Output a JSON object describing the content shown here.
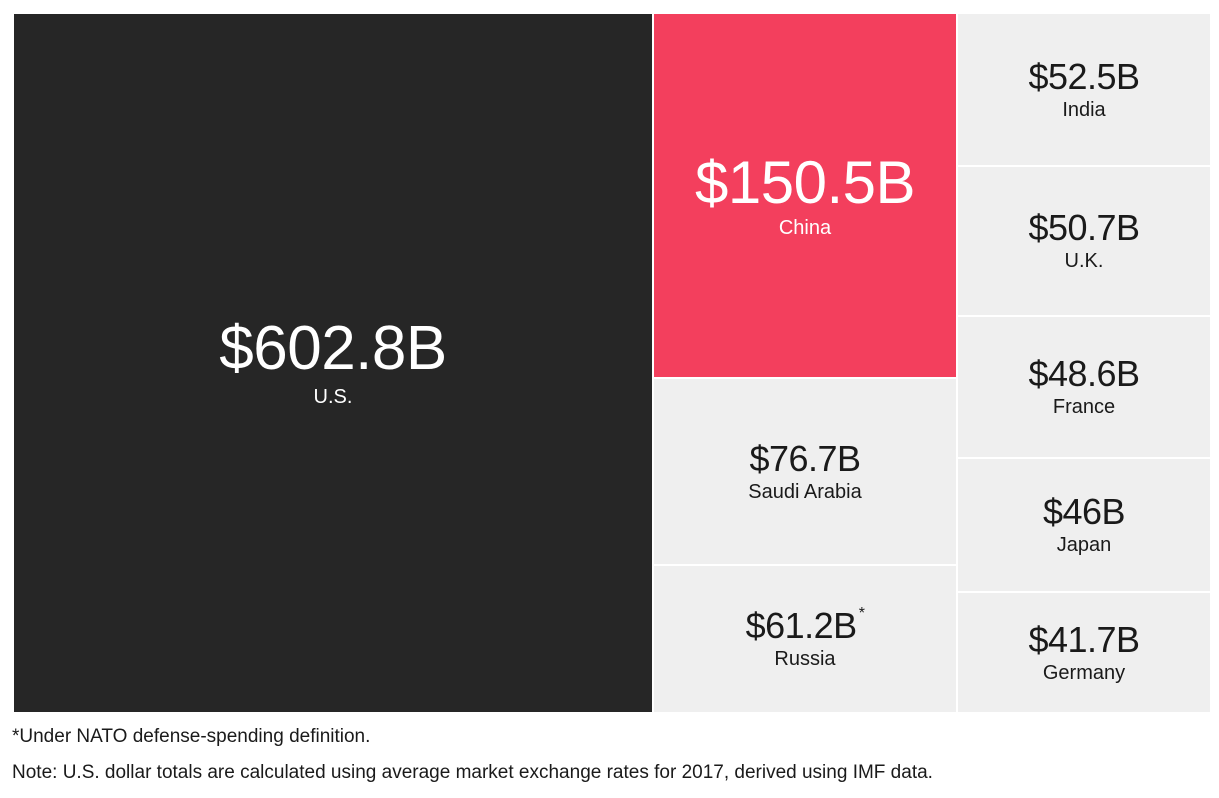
{
  "chart_data": {
    "type": "treemap",
    "colors": {
      "us": "#262626",
      "china": "#f33f5d",
      "others": "#efefef",
      "dark_text": "#ffffff",
      "light_text": "#1a1a1a"
    },
    "items": [
      {
        "country": "U.S.",
        "value": 602.8,
        "label": "$602.8B",
        "color_key": "us",
        "footnote_mark": ""
      },
      {
        "country": "China",
        "value": 150.5,
        "label": "$150.5B",
        "color_key": "china",
        "footnote_mark": ""
      },
      {
        "country": "Saudi Arabia",
        "value": 76.7,
        "label": "$76.7B",
        "color_key": "others",
        "footnote_mark": ""
      },
      {
        "country": "Russia",
        "value": 61.2,
        "label": "$61.2B",
        "color_key": "others",
        "footnote_mark": "*"
      },
      {
        "country": "India",
        "value": 52.5,
        "label": "$52.5B",
        "color_key": "others",
        "footnote_mark": ""
      },
      {
        "country": "U.K.",
        "value": 50.7,
        "label": "$50.7B",
        "color_key": "others",
        "footnote_mark": ""
      },
      {
        "country": "France",
        "value": 48.6,
        "label": "$48.6B",
        "color_key": "others",
        "footnote_mark": ""
      },
      {
        "country": "Japan",
        "value": 46,
        "label": "$46B",
        "color_key": "others",
        "footnote_mark": ""
      },
      {
        "country": "Germany",
        "value": 41.7,
        "label": "$41.7B",
        "color_key": "others",
        "footnote_mark": ""
      }
    ]
  },
  "footnote": "*Under NATO defense-spending definition.",
  "note": "Note: U.S. dollar totals are calculated using average market exchange rates for 2017, derived using IMF data."
}
